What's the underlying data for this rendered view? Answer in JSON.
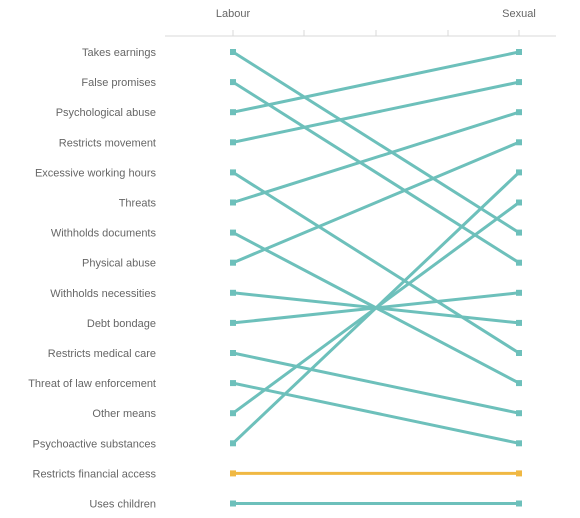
{
  "chart_data": {
    "type": "slope",
    "x": [
      "Labour",
      "Sexual"
    ],
    "categories": [
      "Takes earnings",
      "False promises",
      "Psychological abuse",
      "Restricts movement",
      "Excessive working hours",
      "Threats",
      "Withholds documents",
      "Physical abuse",
      "Withholds necessities",
      "Debt bondage",
      "Restricts medical care",
      "Threat of law enforcement",
      "Other means",
      "Psychoactive substances",
      "Restricts financial access",
      "Uses children"
    ],
    "rank_labour": [
      1,
      2,
      3,
      4,
      5,
      6,
      7,
      8,
      9,
      10,
      11,
      12,
      13,
      14,
      15,
      16
    ],
    "rank_sexual": [
      7,
      8,
      1,
      2,
      11,
      3,
      12,
      4,
      10,
      9,
      13,
      14,
      6,
      5,
      15,
      16
    ],
    "highlight": "Restricts financial access",
    "colors": {
      "line": "#6dc0bb",
      "highlight": "#f0b843",
      "text": "#666666",
      "grid": "#d9d9d9"
    }
  }
}
